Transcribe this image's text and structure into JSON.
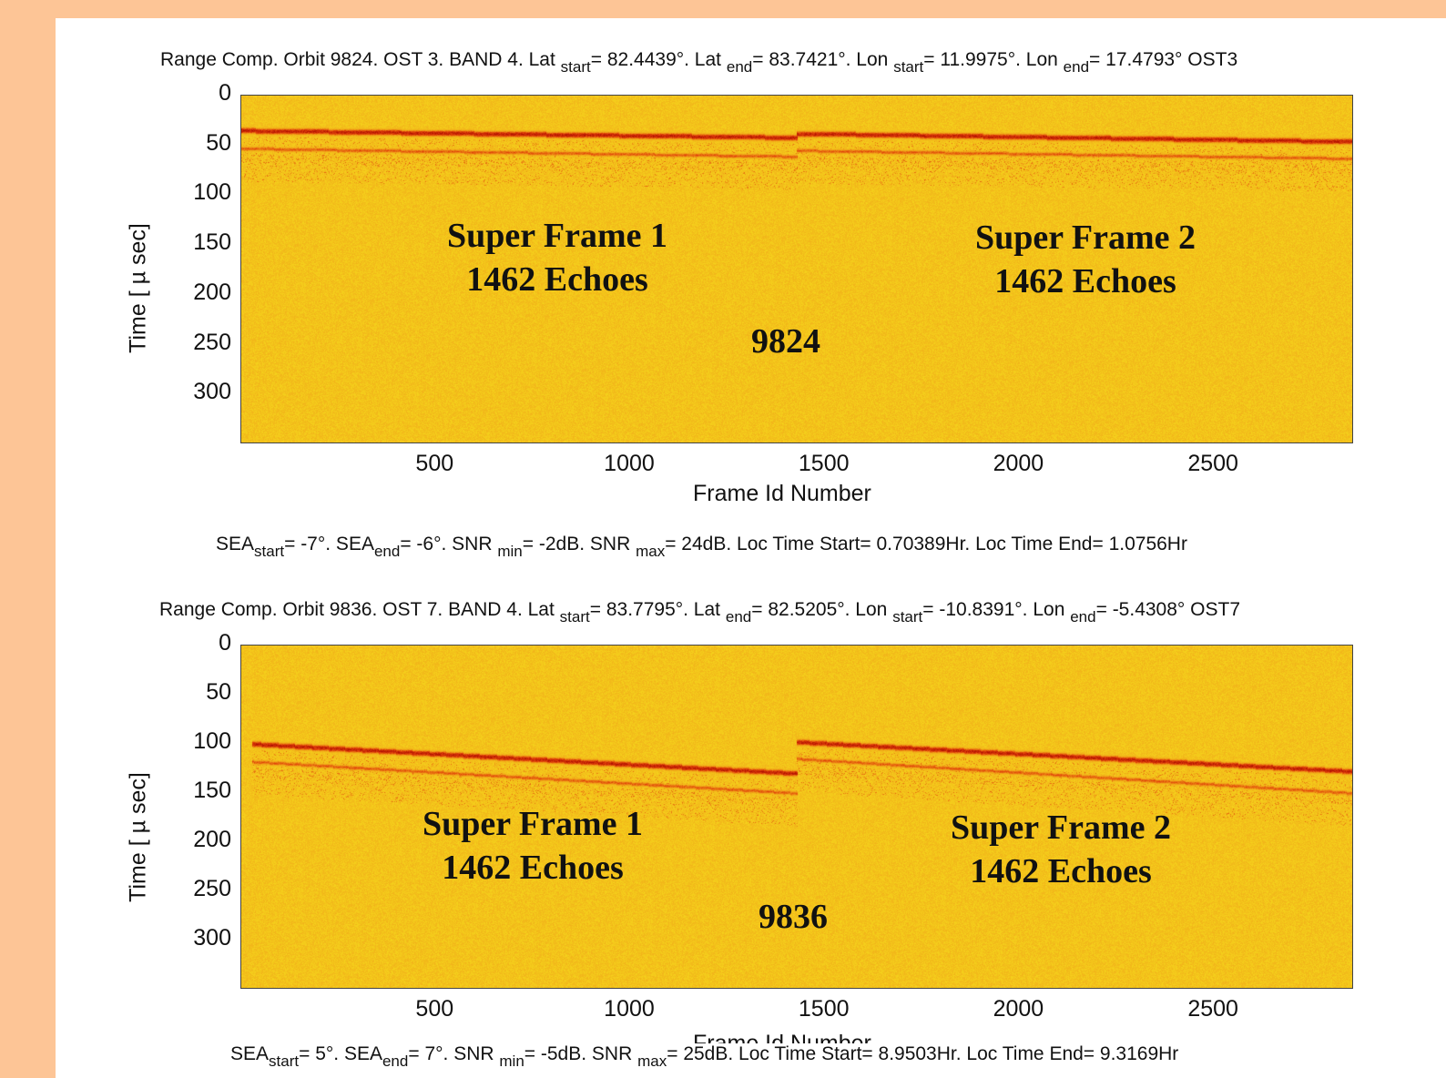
{
  "chart_data": [
    {
      "type": "heatmap",
      "title": {
        "prefix": "Range Comp. Orbit 9824. OST 3. BAND 4. Lat",
        "lat_start": "= 82.4439°. Lat",
        "lat_end": "= 83.7421°. Lon",
        "lon_start": "= 11.9975°. Lon",
        "lon_end": "= 17.4793° OST3"
      },
      "sub_start": "start",
      "sub_end": "end",
      "xlabel": "Frame Id Number",
      "ylabel": "Time [ µ sec]",
      "xticks": [
        500,
        1000,
        1500,
        2000,
        2500
      ],
      "yticks": [
        0,
        50,
        100,
        150,
        200,
        250,
        300
      ],
      "xlim": [
        1,
        2860
      ],
      "ylim": [
        0,
        350
      ],
      "colormap": [
        "#f5d21c",
        "#f0a418",
        "#e0400a",
        "#b01000"
      ],
      "annotations": {
        "frame1_title": "Super Frame 1",
        "frame1_count": "1462 Echoes",
        "frame2_title": "Super Frame 2",
        "frame2_count": "1462 Echoes",
        "orbit": "9824"
      },
      "echo_traces": [
        {
          "x": [
            1,
            1430
          ],
          "y": [
            35,
            42
          ],
          "strength": "strong"
        },
        {
          "x": [
            1,
            1430
          ],
          "y": [
            53,
            61
          ],
          "strength": "medium"
        },
        {
          "x": [
            1430,
            2860
          ],
          "y": [
            38,
            46
          ],
          "strength": "strong"
        },
        {
          "x": [
            1430,
            2860
          ],
          "y": [
            55,
            63
          ],
          "strength": "medium"
        }
      ],
      "footer": {
        "sea_start": "SEA",
        "sea_start_val": "= -7°. SEA",
        "sea_end_val": "= -6°. SNR",
        "snr_min_val": "= -2dB. SNR",
        "snr_max_val": "= 24dB. Loc Time Start= 0.70389Hr. Loc Time End= 1.0756Hr",
        "sub_min": "min",
        "sub_max": "max"
      }
    },
    {
      "type": "heatmap",
      "title": {
        "prefix": "Range Comp. Orbit 9836. OST 7. BAND 4. Lat",
        "lat_start": "= 83.7795°. Lat",
        "lat_end": "= 82.5205°. Lon",
        "lon_start": "= -10.8391°. Lon",
        "lon_end": "= -5.4308° OST7"
      },
      "sub_start": "start",
      "sub_end": "end",
      "xlabel": "Frame Id Number",
      "ylabel": "Time [ µ sec]",
      "xticks": [
        500,
        1000,
        1500,
        2000,
        2500
      ],
      "yticks": [
        0,
        50,
        100,
        150,
        200,
        250,
        300
      ],
      "xlim": [
        1,
        2860
      ],
      "ylim": [
        0,
        350
      ],
      "colormap": [
        "#f5d21c",
        "#f0a418",
        "#e0400a",
        "#b01000"
      ],
      "annotations": {
        "frame1_title": "Super Frame 1",
        "frame1_count": "1462 Echoes",
        "frame2_title": "Super Frame 2",
        "frame2_count": "1462 Echoes",
        "orbit": "9836"
      },
      "echo_traces": [
        {
          "x": [
            30,
            1430
          ],
          "y": [
            100,
            130
          ],
          "strength": "strong"
        },
        {
          "x": [
            30,
            1430
          ],
          "y": [
            118,
            150
          ],
          "strength": "medium"
        },
        {
          "x": [
            1430,
            2860
          ],
          "y": [
            98,
            128
          ],
          "strength": "strong"
        },
        {
          "x": [
            1430,
            2860
          ],
          "y": [
            115,
            150
          ],
          "strength": "medium"
        }
      ],
      "footer": {
        "sea_start": "SEA",
        "sea_start_val": "= 5°. SEA",
        "sea_end_val": "= 7°. SNR",
        "snr_min_val": "= -5dB. SNR",
        "snr_max_val": "= 25dB. Loc Time Start= 8.9503Hr. Loc Time End= 9.3169Hr",
        "sub_min": "min",
        "sub_max": "max"
      }
    }
  ]
}
